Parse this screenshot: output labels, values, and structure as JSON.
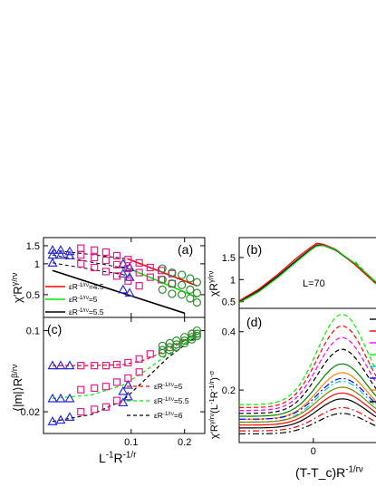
{
  "chart_data": [
    {
      "panel": "(a)",
      "type": "scatter",
      "ylabel": "χ′R^{γ/rν}",
      "xlog": true,
      "ylog": true,
      "xlim": [
        0.032,
        0.26
      ],
      "ylim": [
        0.3,
        1.8
      ],
      "yticks": [
        {
          "v": 0.5,
          "label": "0.5"
        },
        {
          "v": 1,
          "label": "1"
        },
        {
          "v": 1.5,
          "label": "1.5"
        }
      ],
      "legend": [
        {
          "label": "εR^{-1/rν}=4.5",
          "color": "#ff0000"
        },
        {
          "label": "εR^{-1/rν}=5",
          "color": "#00ee00"
        },
        {
          "label": "εR^{-1/rν}=5.5",
          "color": "#000000"
        }
      ],
      "series": [
        {
          "marker": "triangle",
          "color": "#2a2ad8",
          "points": [
            [
              0.036,
              1.36
            ],
            [
              0.04,
              1.36
            ],
            [
              0.045,
              1.32
            ],
            [
              0.036,
              1.22
            ],
            [
              0.04,
              1.22
            ],
            [
              0.045,
              1.2
            ],
            [
              0.036,
              1.02
            ],
            [
              0.09,
              1.0
            ],
            [
              0.098,
              0.92
            ],
            [
              0.09,
              0.8
            ],
            [
              0.098,
              0.74
            ],
            [
              0.09,
              0.56
            ],
            [
              0.098,
              0.52
            ]
          ]
        },
        {
          "marker": "square",
          "color": "#e0208a",
          "points": [
            [
              0.052,
              1.42
            ],
            [
              0.062,
              1.36
            ],
            [
              0.072,
              1.3
            ],
            [
              0.083,
              1.2
            ],
            [
              0.096,
              1.1
            ],
            [
              0.111,
              1.02
            ],
            [
              0.128,
              0.92
            ],
            [
              0.148,
              0.86
            ],
            [
              0.17,
              0.8
            ],
            [
              0.052,
              1.22
            ],
            [
              0.062,
              1.15
            ],
            [
              0.072,
              1.08
            ],
            [
              0.083,
              0.98
            ],
            [
              0.096,
              0.9
            ],
            [
              0.111,
              0.82
            ],
            [
              0.128,
              0.74
            ],
            [
              0.148,
              0.7
            ],
            [
              0.17,
              0.64
            ],
            [
              0.052,
              1.0
            ],
            [
              0.062,
              0.92
            ],
            [
              0.072,
              0.84
            ],
            [
              0.083,
              0.76
            ],
            [
              0.096,
              0.68
            ],
            [
              0.111,
              0.61
            ]
          ]
        },
        {
          "marker": "circle",
          "color": "#2e8b2e",
          "points": [
            [
              0.15,
              0.9
            ],
            [
              0.17,
              0.82
            ],
            [
              0.193,
              0.78
            ],
            [
              0.215,
              0.72
            ],
            [
              0.235,
              0.66
            ],
            [
              0.15,
              0.7
            ],
            [
              0.17,
              0.64
            ],
            [
              0.193,
              0.62
            ],
            [
              0.215,
              0.56
            ],
            [
              0.235,
              0.52
            ],
            [
              0.15,
              0.56
            ],
            [
              0.17,
              0.51
            ],
            [
              0.193,
              0.5
            ],
            [
              0.215,
              0.46
            ],
            [
              0.235,
              0.42
            ]
          ]
        }
      ],
      "fits": [
        {
          "color": "#ff0000",
          "x": [
            0.095,
            0.235
          ],
          "y": [
            1.12,
            0.61
          ]
        },
        {
          "color": "#00ee00",
          "x": [
            0.1,
            0.235
          ],
          "y": [
            0.88,
            0.47
          ]
        },
        {
          "color": "#000000",
          "x": [
            0.036,
            0.2
          ],
          "y": [
            0.86,
            0.33
          ]
        }
      ],
      "dashed_guides": [
        {
          "x": [
            0.036,
            0.095
          ],
          "y": [
            1.36,
            1.12
          ]
        },
        {
          "x": [
            0.036,
            0.1
          ],
          "y": [
            1.22,
            0.88
          ]
        },
        {
          "x": [
            0.036,
            0.1
          ],
          "y": [
            1.02,
            0.76
          ]
        }
      ]
    },
    {
      "panel": "(c)",
      "type": "scatter",
      "ylabel": "⟨|m|⟩R^{β/rν}",
      "xlabel": "L^{-1}R^{-1/r}",
      "xlog": true,
      "ylog": true,
      "xlim": [
        0.032,
        0.26
      ],
      "ylim": [
        0.013,
        0.13
      ],
      "xticks": [
        {
          "v": 0.1,
          "label": "0.1"
        },
        {
          "v": 0.2,
          "label": "0.2"
        }
      ],
      "yticks": [
        {
          "v": 0.02,
          "label": "0.02"
        },
        {
          "v": 0.1,
          "label": "0.1"
        }
      ],
      "legend": [
        {
          "label": "εR^{-1/rν}=5",
          "color": "#ff0000"
        },
        {
          "label": "εR^{-1/rν}=5.5",
          "color": "#00ee00"
        },
        {
          "label": "εR^{-1/rν}=6",
          "color": "#000000"
        }
      ],
      "series": [
        {
          "marker": "triangle",
          "color": "#2a2ad8",
          "points": [
            [
              0.036,
              0.05
            ],
            [
              0.04,
              0.05
            ],
            [
              0.045,
              0.05
            ],
            [
              0.036,
              0.026
            ],
            [
              0.04,
              0.026
            ],
            [
              0.045,
              0.026
            ],
            [
              0.036,
              0.0165
            ],
            [
              0.04,
              0.017
            ],
            [
              0.045,
              0.018
            ],
            [
              0.09,
              0.03
            ],
            [
              0.096,
              0.034
            ],
            [
              0.09,
              0.024
            ],
            [
              0.096,
              0.027
            ]
          ]
        },
        {
          "marker": "square",
          "color": "#e0208a",
          "points": [
            [
              0.052,
              0.05
            ],
            [
              0.062,
              0.05
            ],
            [
              0.072,
              0.05
            ],
            [
              0.083,
              0.051
            ],
            [
              0.096,
              0.053
            ],
            [
              0.111,
              0.057
            ],
            [
              0.128,
              0.063
            ],
            [
              0.052,
              0.031
            ],
            [
              0.062,
              0.032
            ],
            [
              0.072,
              0.033
            ],
            [
              0.083,
              0.036
            ],
            [
              0.096,
              0.039
            ],
            [
              0.111,
              0.044
            ],
            [
              0.052,
              0.02
            ],
            [
              0.062,
              0.021
            ],
            [
              0.072,
              0.022
            ],
            [
              0.083,
              0.025
            ]
          ]
        },
        {
          "marker": "circle",
          "color": "#2e8b2e",
          "points": [
            [
              0.15,
              0.074
            ],
            [
              0.165,
              0.078
            ],
            [
              0.18,
              0.082
            ],
            [
              0.2,
              0.088
            ],
            [
              0.22,
              0.094
            ],
            [
              0.235,
              0.1
            ],
            [
              0.15,
              0.068
            ],
            [
              0.165,
              0.072
            ],
            [
              0.18,
              0.076
            ],
            [
              0.2,
              0.082
            ],
            [
              0.22,
              0.088
            ],
            [
              0.235,
              0.094
            ],
            [
              0.15,
              0.064
            ],
            [
              0.165,
              0.068
            ],
            [
              0.18,
              0.072
            ],
            [
              0.2,
              0.078
            ],
            [
              0.22,
              0.084
            ],
            [
              0.235,
              0.09
            ]
          ]
        }
      ],
      "dashed_curves": [
        {
          "color": "#ff0000",
          "x": [
            0.036,
            0.06,
            0.09,
            0.12,
            0.16,
            0.2,
            0.235
          ],
          "y": [
            0.05,
            0.05,
            0.051,
            0.056,
            0.068,
            0.082,
            0.096
          ]
        },
        {
          "color": "#00ee00",
          "x": [
            0.036,
            0.06,
            0.09,
            0.12,
            0.16,
            0.2,
            0.235
          ],
          "y": [
            0.026,
            0.028,
            0.034,
            0.045,
            0.062,
            0.078,
            0.091
          ]
        },
        {
          "color": "#000000",
          "x": [
            0.036,
            0.06,
            0.09,
            0.12,
            0.16,
            0.2,
            0.235
          ],
          "y": [
            0.0165,
            0.019,
            0.025,
            0.038,
            0.058,
            0.075,
            0.089
          ]
        }
      ]
    },
    {
      "panel": "(b)",
      "type": "line",
      "ylabel": "χR^{γ/rν}",
      "annotation": "L=70",
      "xlim": [
        -1.2,
        1.2
      ],
      "ylim": [
        0.35,
        1.95
      ],
      "yticks": [
        {
          "v": 0.5,
          "label": "0.5"
        },
        {
          "v": 1,
          "label": "1"
        },
        {
          "v": 1.5,
          "label": "1.5"
        }
      ],
      "series": [
        {
          "color": "#000000",
          "style": "solid",
          "x": [
            -1.2,
            -0.9,
            -0.6,
            -0.3,
            -0.1,
            0.0,
            0.1,
            0.3,
            0.6,
            0.9,
            1.2
          ],
          "y": [
            0.5,
            0.75,
            1.08,
            1.45,
            1.68,
            1.78,
            1.78,
            1.66,
            1.34,
            0.95,
            0.6
          ]
        },
        {
          "color": "#ff0000",
          "style": "solid",
          "x": [
            -1.2,
            -0.9,
            -0.6,
            -0.3,
            -0.1,
            0.0,
            0.1,
            0.3,
            0.6,
            0.9,
            1.2
          ],
          "y": [
            0.52,
            0.78,
            1.12,
            1.5,
            1.72,
            1.82,
            1.8,
            1.68,
            1.33,
            0.93,
            0.58
          ]
        },
        {
          "color": "#00cc00",
          "style": "solid",
          "x": [
            -1.2,
            -0.9,
            -0.6,
            -0.3,
            -0.1,
            0.0,
            0.1,
            0.3,
            0.6,
            0.9,
            1.2
          ],
          "y": [
            0.48,
            0.72,
            1.05,
            1.42,
            1.66,
            1.76,
            1.77,
            1.67,
            1.36,
            0.97,
            0.62
          ]
        },
        {
          "color": "#00cc00",
          "style": "dashed",
          "x": [
            0.6,
            0.8,
            1.0,
            1.2
          ],
          "y": [
            1.4,
            1.1,
            0.78,
            0.48
          ]
        }
      ]
    },
    {
      "panel": "(d)",
      "type": "line",
      "ylabel": "χ′R^{γ/rν}(L^{-1}R^{-1/r})^{-σ}",
      "xlabel": "(T-T_c)R^{-1/rν}",
      "xlim": [
        -0.9,
        1.2
      ],
      "ylim": [
        0.02,
        0.48
      ],
      "xticks": [
        {
          "v": 0,
          "label": "0"
        }
      ],
      "yticks": [
        {
          "v": 0.2,
          "label": "0.2"
        },
        {
          "v": 0.4,
          "label": "0.4"
        }
      ],
      "series": [
        {
          "color": "#00ee00",
          "style": "dashed",
          "peak": 0.46,
          "base": 0.15
        },
        {
          "color": "#ff0000",
          "style": "dashed",
          "peak": 0.42,
          "base": 0.14
        },
        {
          "color": "#ff00ff",
          "style": "dashed",
          "peak": 0.38,
          "base": 0.13
        },
        {
          "color": "#000000",
          "style": "dashed",
          "peak": 0.34,
          "base": 0.12
        },
        {
          "color": "#008000",
          "style": "solid",
          "peak": 0.29,
          "base": 0.11
        },
        {
          "color": "#ff8000",
          "style": "solid",
          "peak": 0.26,
          "base": 0.1
        },
        {
          "color": "#0000ff",
          "style": "dashdot",
          "peak": 0.24,
          "base": 0.1
        },
        {
          "color": "#00cccc",
          "style": "dashdot",
          "peak": 0.23,
          "base": 0.09
        },
        {
          "color": "#808000",
          "style": "solid",
          "peak": 0.21,
          "base": 0.09
        },
        {
          "color": "#ff0000",
          "style": "solid",
          "peak": 0.19,
          "base": 0.08
        },
        {
          "color": "#000000",
          "style": "solid",
          "peak": 0.17,
          "base": 0.07
        },
        {
          "color": "#ff0000",
          "style": "dashdot",
          "peak": 0.14,
          "base": 0.06
        },
        {
          "color": "#000000",
          "style": "dashdot",
          "peak": 0.12,
          "base": 0.05
        }
      ],
      "legend_stubs": [
        "#000000",
        "#ff0000",
        "#ff00ff",
        "#00ee00",
        "#00cccc",
        "#0000ff",
        "#ff8000",
        "#000000"
      ]
    }
  ]
}
